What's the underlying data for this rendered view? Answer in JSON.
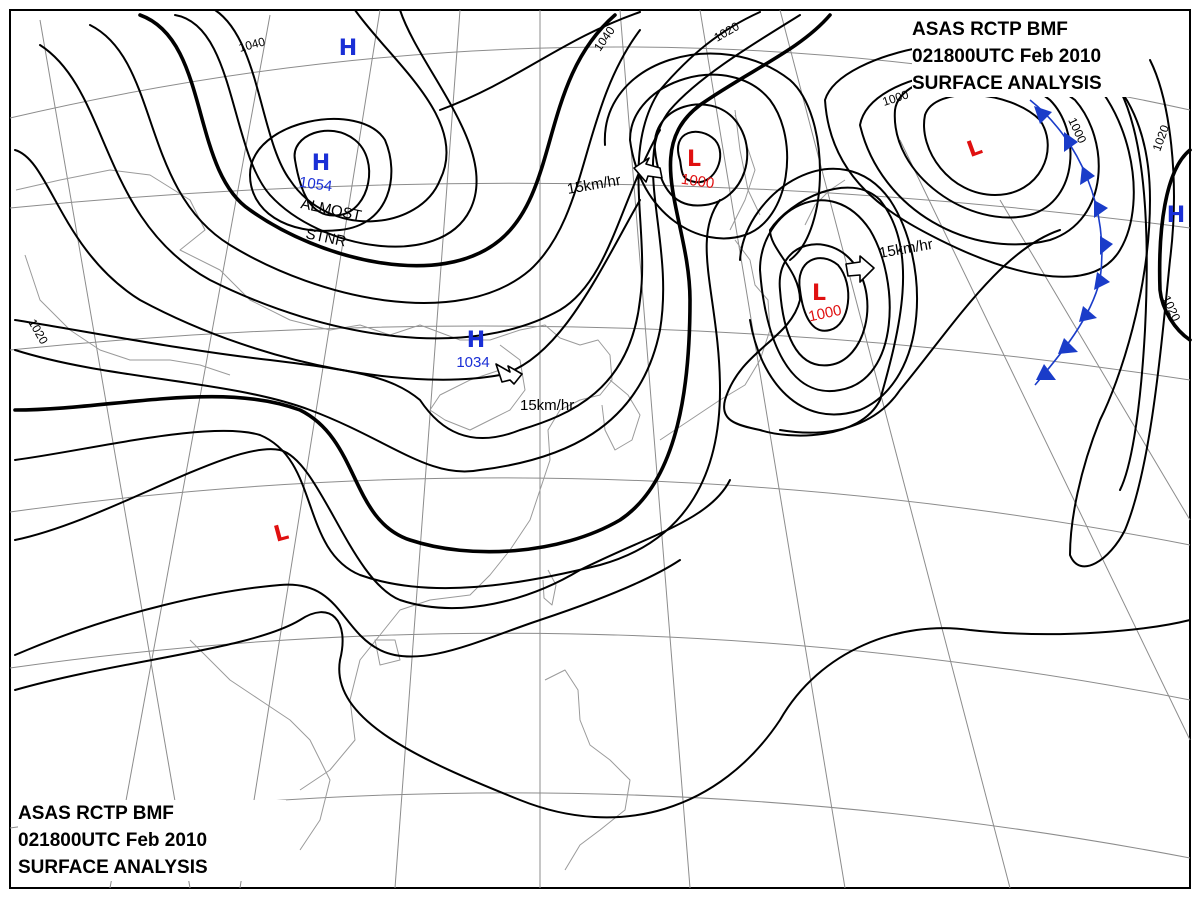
{
  "header": {
    "line1": [
      "ASAS",
      "RCTP",
      "BMF"
    ],
    "line2": [
      "021800UTC",
      "Feb",
      "2010"
    ],
    "line3": "SURFACE ANALYSIS"
  },
  "isobar_labels": [
    "1040",
    "1040",
    "1020",
    "1000",
    "1000",
    "1020",
    "1020",
    "1020"
  ],
  "pressure_centres": [
    {
      "mark": "H",
      "value": "",
      "color": "#1a2fd6"
    },
    {
      "mark": "H",
      "value": "1054",
      "color": "#1a2fd6"
    },
    {
      "mark": "H",
      "value": "1034",
      "color": "#1a2fd6"
    },
    {
      "mark": "L",
      "value": "1000",
      "color": "#e01010"
    },
    {
      "mark": "L",
      "value": "1000",
      "color": "#e01010"
    },
    {
      "mark": "L",
      "value": "",
      "color": "#e01010"
    },
    {
      "mark": "H",
      "value": "",
      "color": "#1a2fd6"
    },
    {
      "mark": "L",
      "value": "",
      "color": "#e01010"
    }
  ],
  "annotations": {
    "stationary_line1": "ALMOST",
    "stationary_line2": "STNR",
    "motion": [
      "15km/hr",
      "15km/hr",
      "15km/hr"
    ]
  },
  "front": {
    "type": "cold-front",
    "color": "#1a3cc9"
  }
}
